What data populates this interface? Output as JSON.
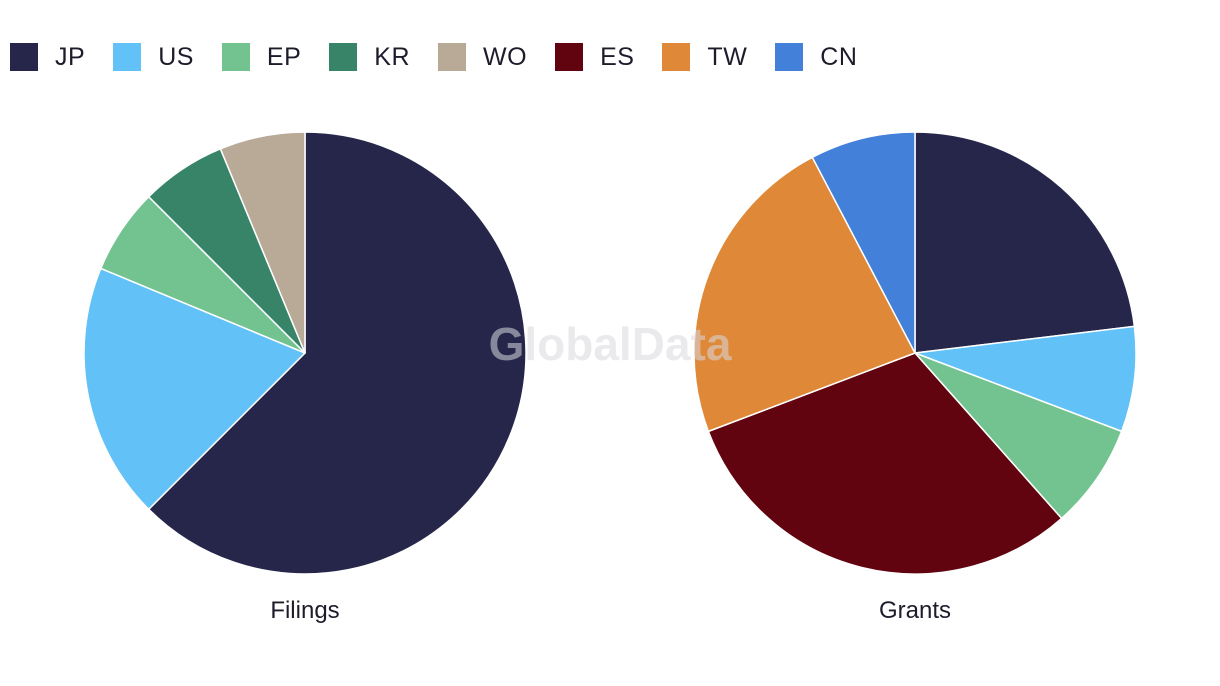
{
  "legend": [
    {
      "label": "JP",
      "color": "#26264b"
    },
    {
      "label": "US",
      "color": "#62c2f8"
    },
    {
      "label": "EP",
      "color": "#73c391"
    },
    {
      "label": "KR",
      "color": "#378469"
    },
    {
      "label": "WO",
      "color": "#b8aa96"
    },
    {
      "label": "ES",
      "color": "#62040f"
    },
    {
      "label": "TW",
      "color": "#de8838"
    },
    {
      "label": "CN",
      "color": "#4380da"
    }
  ],
  "watermark": "GlobalData",
  "chart_data": [
    {
      "type": "pie",
      "title": "Filings",
      "slices": [
        {
          "label": "JP",
          "value": 62.5
        },
        {
          "label": "US",
          "value": 18.75
        },
        {
          "label": "EP",
          "value": 6.25
        },
        {
          "label": "KR",
          "value": 6.25
        },
        {
          "label": "WO",
          "value": 6.25
        }
      ]
    },
    {
      "type": "pie",
      "title": "Grants",
      "slices": [
        {
          "label": "JP",
          "value": 23.08
        },
        {
          "label": "US",
          "value": 7.69
        },
        {
          "label": "EP",
          "value": 7.69
        },
        {
          "label": "ES",
          "value": 30.77
        },
        {
          "label": "TW",
          "value": 23.08
        },
        {
          "label": "CN",
          "value": 7.69
        }
      ]
    }
  ]
}
